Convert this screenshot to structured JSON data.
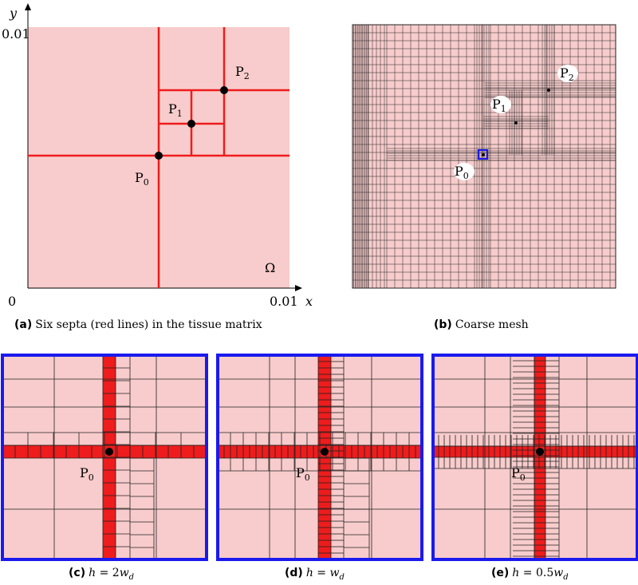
{
  "colors": {
    "tissue": "#f8cccc",
    "septum": "#ee1c1c",
    "frame_blue": "#1a1aee",
    "mesh_line": "#222222",
    "point": "#000000"
  },
  "panel_a": {
    "y_axis_label": "y",
    "x_axis_label": "x",
    "y_max_label": "0.01",
    "x_max_label": "0.01",
    "origin_label": "0",
    "domain_label": "Ω",
    "points": [
      {
        "name": "P",
        "sub": "0"
      },
      {
        "name": "P",
        "sub": "1"
      },
      {
        "name": "P",
        "sub": "2"
      }
    ]
  },
  "panel_b": {
    "points": [
      {
        "name": "P",
        "sub": "0"
      },
      {
        "name": "P",
        "sub": "1"
      },
      {
        "name": "P",
        "sub": "2"
      }
    ]
  },
  "zoom_point": {
    "name": "P",
    "sub": "0"
  },
  "captions": {
    "a": {
      "tag": "(a)",
      "text": "Six septa (red lines) in the tissue matrix"
    },
    "b": {
      "tag": "(b)",
      "text": "Coarse mesh"
    },
    "c": {
      "tag": "(c)",
      "var": "h",
      "eq": " = 2",
      "wd": "w",
      "wd_sub": "d"
    },
    "d": {
      "tag": "(d)",
      "var": "h",
      "eq": " = ",
      "wd": "w",
      "wd_sub": "d"
    },
    "e": {
      "tag": "(e)",
      "var": "h",
      "eq": " = 0.5",
      "wd": "w",
      "wd_sub": "d"
    }
  }
}
